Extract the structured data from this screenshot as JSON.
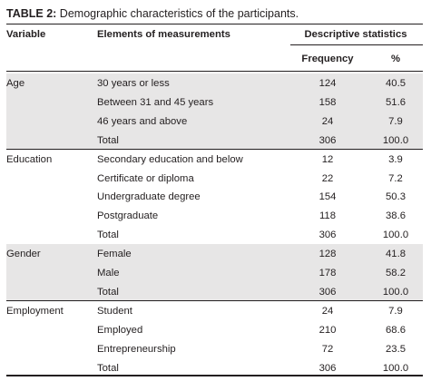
{
  "table": {
    "caption_label": "TABLE 2:",
    "caption_text": " Demographic characteristics of the participants.",
    "headers": {
      "variable": "Variable",
      "elements": "Elements of measurements",
      "descriptive": "Descriptive statistics",
      "frequency": "Frequency",
      "percent": "%"
    },
    "groups": [
      {
        "variable": "Age",
        "shaded": true,
        "rows": [
          {
            "element": "30 years or less",
            "frequency": "124",
            "percent": "40.5"
          },
          {
            "element": "Between 31 and 45 years",
            "frequency": "158",
            "percent": "51.6"
          },
          {
            "element": "46 years and above",
            "frequency": "24",
            "percent": "7.9"
          },
          {
            "element": "Total",
            "frequency": "306",
            "percent": "100.0"
          }
        ]
      },
      {
        "variable": "Education",
        "shaded": false,
        "rows": [
          {
            "element": "Secondary education and below",
            "frequency": "12",
            "percent": "3.9"
          },
          {
            "element": "Certificate or diploma",
            "frequency": "22",
            "percent": "7.2"
          },
          {
            "element": "Undergraduate degree",
            "frequency": "154",
            "percent": "50.3"
          },
          {
            "element": "Postgraduate",
            "frequency": "118",
            "percent": "38.6"
          },
          {
            "element": "Total",
            "frequency": "306",
            "percent": "100.0"
          }
        ]
      },
      {
        "variable": "Gender",
        "shaded": true,
        "rows": [
          {
            "element": "Female",
            "frequency": "128",
            "percent": "41.8"
          },
          {
            "element": "Male",
            "frequency": "178",
            "percent": "58.2"
          },
          {
            "element": "Total",
            "frequency": "306",
            "percent": "100.0"
          }
        ]
      },
      {
        "variable": "Employment",
        "shaded": false,
        "rows": [
          {
            "element": "Student",
            "frequency": "24",
            "percent": "7.9"
          },
          {
            "element": "Employed",
            "frequency": "210",
            "percent": "68.6"
          },
          {
            "element": "Entrepreneurship",
            "frequency": "72",
            "percent": "23.5"
          },
          {
            "element": "Total",
            "frequency": "306",
            "percent": "100.0"
          }
        ]
      }
    ],
    "colors": {
      "shade": "#e7e6e6",
      "text": "#231f20"
    }
  }
}
